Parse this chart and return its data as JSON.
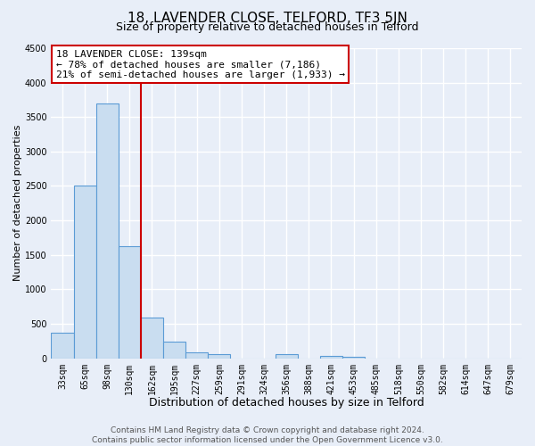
{
  "title": "18, LAVENDER CLOSE, TELFORD, TF3 5JN",
  "subtitle": "Size of property relative to detached houses in Telford",
  "xlabel": "Distribution of detached houses by size in Telford",
  "ylabel": "Number of detached properties",
  "categories": [
    "33sqm",
    "65sqm",
    "98sqm",
    "130sqm",
    "162sqm",
    "195sqm",
    "227sqm",
    "259sqm",
    "291sqm",
    "324sqm",
    "356sqm",
    "388sqm",
    "421sqm",
    "453sqm",
    "485sqm",
    "518sqm",
    "550sqm",
    "582sqm",
    "614sqm",
    "647sqm",
    "679sqm"
  ],
  "bar_values": [
    375,
    2500,
    3700,
    1620,
    590,
    240,
    90,
    55,
    0,
    0,
    55,
    0,
    30,
    20,
    0,
    0,
    0,
    0,
    0,
    0,
    0
  ],
  "bar_color": "#c9ddf0",
  "bar_edge_color": "#5b9bd5",
  "vline_x_index": 3,
  "vline_color": "#cc0000",
  "annotation_title": "18 LAVENDER CLOSE: 139sqm",
  "annotation_line1": "← 78% of detached houses are smaller (7,186)",
  "annotation_line2": "21% of semi-detached houses are larger (1,933) →",
  "ylim": [
    0,
    4500
  ],
  "yticks": [
    0,
    500,
    1000,
    1500,
    2000,
    2500,
    3000,
    3500,
    4000,
    4500
  ],
  "bg_color": "#e8eef8",
  "grid_color": "#ffffff",
  "title_fontsize": 11,
  "subtitle_fontsize": 9,
  "xlabel_fontsize": 9,
  "ylabel_fontsize": 8,
  "tick_fontsize": 7,
  "annot_fontsize": 8,
  "footer_fontsize": 6.5,
  "footer_line1": "Contains HM Land Registry data © Crown copyright and database right 2024.",
  "footer_line2": "Contains public sector information licensed under the Open Government Licence v3.0."
}
